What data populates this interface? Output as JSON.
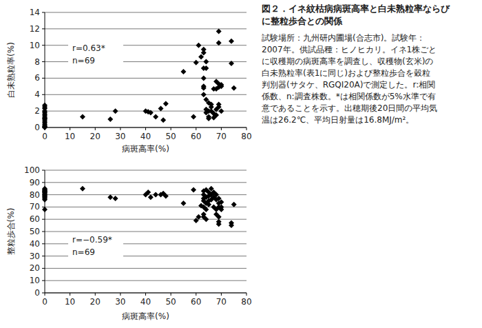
{
  "caption": {
    "title_lines": [
      "図２．イネ紋枯病病斑高率と白未熟粒率ならび",
      "に整粒歩合との関係"
    ],
    "note_lines": [
      "試験場所：九州研内圃場(合志市)。試験年：",
      "2007年。供試品種：ヒノヒカリ。イネ1株ごと",
      "に収穫期の病斑高率を調査し、収穫物(玄米)の",
      "白未熟粒率(表1に同じ)および整粒歩合を穀粒",
      "判別器(サタケ、RGQI20A)で測定した。r:相関",
      "係数、n:調査株数。*は相関係数が5%水準で有",
      "意であることを示す。出穂期後20日間の平均気",
      "温は26.2℃、平均日射量は16.8MJ/m²。"
    ]
  },
  "chart_data": [
    {
      "type": "scatter",
      "x_label": "病斑高率(%)",
      "y_label": "白未熟粒率(%)",
      "annotations": [
        "r=0.63*",
        "n=69"
      ],
      "x": [
        0,
        0,
        0,
        0,
        0,
        0,
        0,
        0,
        0,
        0,
        0,
        0,
        0,
        0,
        0,
        0,
        15,
        26,
        28,
        40,
        41,
        42,
        44,
        46,
        47,
        48,
        55,
        59,
        60,
        61,
        62,
        63,
        63,
        63,
        63,
        63,
        63,
        63,
        64,
        64,
        64,
        64,
        64,
        65,
        65,
        65,
        65,
        66,
        66,
        66,
        67,
        67,
        67,
        68,
        68,
        68,
        68,
        69,
        69,
        69,
        69,
        69,
        69,
        70,
        70,
        70,
        74,
        74,
        75
      ],
      "series": [
        {
          "name": "白未熟粒率",
          "color": "#000000",
          "marker": "diamond",
          "values": [
            2.7,
            2.5,
            2.3,
            2.0,
            1.8,
            1.6,
            1.4,
            1.2,
            1.0,
            0.8,
            0.6,
            0.4,
            0.2,
            0.1,
            0.0,
            1.1,
            1.3,
            1.0,
            2.0,
            2.0,
            1.9,
            1.8,
            1.3,
            2.3,
            0.9,
            2.9,
            6.8,
            1.3,
            7.9,
            10.0,
            8.6,
            9.5,
            9.1,
            7.2,
            6.0,
            5.0,
            4.8,
            4.0,
            8.0,
            7.2,
            3.4,
            2.2,
            1.8,
            3.0,
            2.0,
            1.3,
            1.1,
            2.8,
            2.5,
            2.0,
            4.7,
            1.7,
            1.2,
            5.6,
            4.7,
            2.2,
            1.5,
            11.7,
            10.3,
            5.3,
            4.9,
            2.8,
            2.5,
            5.2,
            5.0,
            2.0,
            7.8,
            10.5,
            4.8
          ]
        }
      ],
      "xlim": [
        0,
        80
      ],
      "xticks": [
        0,
        10,
        20,
        30,
        40,
        50,
        60,
        70,
        80
      ],
      "ylim": [
        0,
        14
      ],
      "yticks": [
        0,
        2,
        4,
        6,
        8,
        10,
        12,
        14
      ],
      "grid": true
    },
    {
      "type": "scatter",
      "x_label": "病斑高率(%)",
      "y_label": "整粒歩合(%)",
      "annotations": [
        "r=−0.59*",
        "n=69"
      ],
      "x": [
        0,
        0,
        0,
        0,
        0,
        0,
        0,
        0,
        0,
        0,
        0,
        0,
        0,
        0,
        0,
        0,
        15,
        26,
        28,
        40,
        41,
        42,
        44,
        46,
        47,
        48,
        55,
        59,
        60,
        61,
        62,
        63,
        63,
        63,
        63,
        63,
        63,
        63,
        64,
        64,
        64,
        64,
        64,
        65,
        65,
        65,
        65,
        66,
        66,
        66,
        67,
        67,
        67,
        68,
        68,
        68,
        68,
        69,
        69,
        69,
        69,
        69,
        69,
        70,
        70,
        70,
        74,
        74,
        75
      ],
      "series": [
        {
          "name": "整粒歩合",
          "color": "#000000",
          "marker": "diamond",
          "values": [
            68,
            76,
            78,
            79,
            80,
            80,
            81,
            82,
            82,
            83,
            83,
            84,
            84,
            85,
            79,
            77,
            85,
            78,
            77,
            80,
            82,
            78,
            80,
            80,
            81,
            79,
            73,
            84,
            59,
            62,
            71,
            83,
            80,
            77,
            75,
            70,
            64,
            62,
            84,
            78,
            73,
            68,
            60,
            82,
            79,
            75,
            72,
            85,
            80,
            76,
            82,
            78,
            70,
            80,
            76,
            68,
            64,
            77,
            73,
            70,
            62,
            58,
            56,
            74,
            70,
            68,
            57,
            55,
            72
          ]
        }
      ],
      "xlim": [
        0,
        80
      ],
      "xticks": [
        0,
        10,
        20,
        30,
        40,
        50,
        60,
        70,
        80
      ],
      "ylim": [
        0,
        100
      ],
      "yticks": [
        0,
        10,
        20,
        30,
        40,
        50,
        60,
        70,
        80,
        90,
        100
      ],
      "grid": true
    }
  ]
}
